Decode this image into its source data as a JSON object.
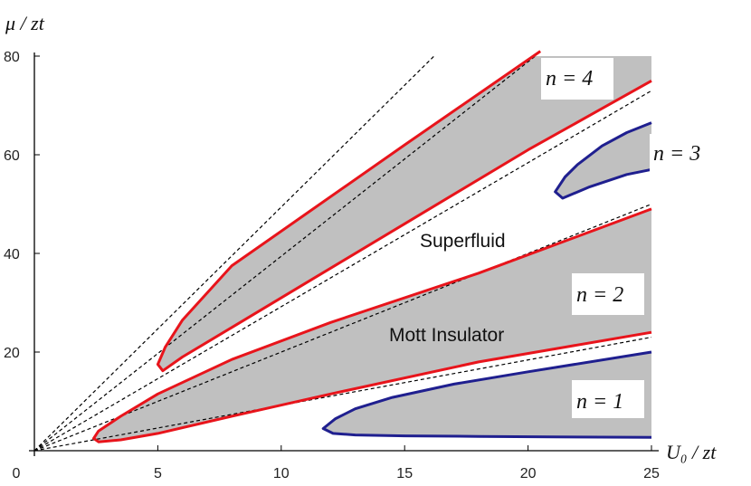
{
  "chart_data": {
    "type": "line",
    "xlabel": "U₀ / zt",
    "ylabel": "μ / zt",
    "xlim": [
      0,
      25
    ],
    "ylim": [
      0,
      80
    ],
    "x_ticks": [
      0,
      5,
      10,
      15,
      20,
      25
    ],
    "y_ticks": [
      20,
      40,
      60,
      80
    ],
    "grid": false,
    "region_labels": [
      "Superfluid",
      "Mott Insulator"
    ],
    "lobe_labels": [
      "n = 1",
      "n = 2",
      "n = 3",
      "n = 4"
    ],
    "colors": {
      "red_boundary": "#e8141b",
      "blue_boundary": "#1f1f8f",
      "mott_fill": "#c0c0c0",
      "dashed": "#000000"
    },
    "series": [
      {
        "color": "red",
        "style": "solid",
        "x": [
          25,
          18,
          12,
          8,
          5,
          3.5,
          2.6,
          2.4,
          2.6,
          3.5,
          5,
          8,
          12,
          18,
          25
        ],
        "y": [
          49,
          36,
          26,
          18.5,
          11.5,
          7,
          4,
          2.5,
          1.8,
          2.2,
          3.5,
          7,
          11.5,
          18,
          24
        ]
      },
      {
        "color": "red",
        "style": "solid",
        "x": [
          20.5,
          15,
          11,
          8,
          6,
          5.3,
          5.0,
          5.2,
          6,
          8,
          11,
          15,
          20,
          25
        ],
        "y": [
          81,
          62,
          48,
          37.5,
          26.5,
          21,
          17.5,
          16.2,
          19,
          25,
          34,
          46,
          61,
          75
        ]
      },
      {
        "color": "blue",
        "style": "solid",
        "x": [
          25,
          20,
          17,
          14.5,
          13,
          12.2,
          11.7,
          12.1,
          13,
          15,
          18,
          21,
          25
        ],
        "y": [
          20,
          16,
          13.5,
          10.8,
          8.5,
          6.5,
          4.5,
          3.5,
          3.2,
          3.0,
          2.9,
          2.8,
          2.7
        ]
      },
      {
        "color": "blue",
        "style": "solid",
        "x": [
          25,
          24,
          23,
          22,
          21.5,
          21.1,
          21.4,
          22.5,
          24,
          25
        ],
        "y": [
          66.5,
          64.5,
          61.8,
          58,
          55.5,
          52.5,
          51.2,
          53.5,
          56,
          57
        ]
      },
      {
        "color": "black",
        "style": "dashed",
        "x": [
          0,
          25
        ],
        "y": [
          0,
          50
        ]
      },
      {
        "color": "black",
        "style": "dashed",
        "x": [
          0,
          25
        ],
        "y": [
          0,
          23
        ]
      },
      {
        "color": "black",
        "style": "dashed",
        "x": [
          0,
          16.6
        ],
        "y": [
          0,
          82
        ]
      },
      {
        "color": "black",
        "style": "dashed",
        "x": [
          0,
          20.8
        ],
        "y": [
          0,
          82
        ]
      },
      {
        "color": "black",
        "style": "dashed",
        "x": [
          0,
          25
        ],
        "y": [
          0,
          73
        ]
      }
    ]
  }
}
